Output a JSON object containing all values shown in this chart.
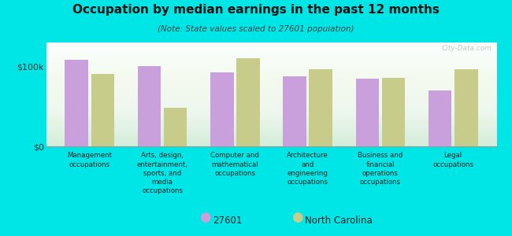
{
  "title": "Occupation by median earnings in the past 12 months",
  "subtitle": "(Note: State values scaled to 27601 population)",
  "categories": [
    "Management\noccupations",
    "Arts, design,\nentertainment,\nsports, and\nmedia\noccupations",
    "Computer and\nmathematical\noccupations",
    "Architecture\nand\nengineering\noccupations",
    "Business and\nfinancial\noperations\noccupations",
    "Legal\noccupations"
  ],
  "values_27601": [
    108000,
    100000,
    93000,
    88000,
    85000,
    70000
  ],
  "values_nc": [
    91000,
    48000,
    110000,
    97000,
    86000,
    97000
  ],
  "color_27601": "#c9a0dc",
  "color_nc": "#c8cc8a",
  "ylabel_ticks": [
    "$0",
    "$100k"
  ],
  "ytick_vals": [
    0,
    100000
  ],
  "ylim": [
    0,
    130000
  ],
  "background_color": "#00e5e5",
  "legend_27601": "27601",
  "legend_nc": "North Carolina",
  "watermark": "City-Data.com"
}
